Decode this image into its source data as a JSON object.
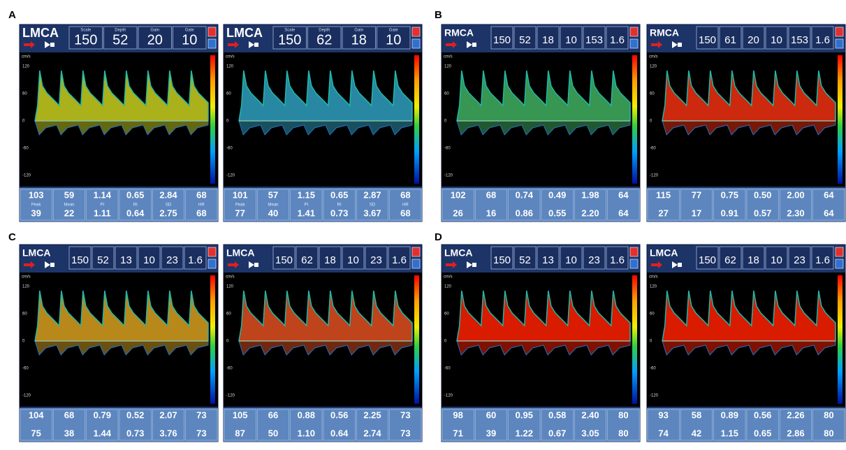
{
  "axis": {
    "unit": "cm/s",
    "ticks": [
      "120",
      "60",
      "0",
      "-60",
      "-120"
    ]
  },
  "panels": [
    {
      "label": "A",
      "screens": [
        {
          "vessel": "LMCA",
          "color": "#c8d020",
          "setting_labels": [
            "Scale",
            "Depth",
            "Gain",
            "Gate"
          ],
          "settings": [
            "150",
            "52",
            "20",
            "10"
          ],
          "row_labels": [
            "Peak",
            "Mean",
            "PI",
            "RI",
            "SD",
            "HR"
          ],
          "row1": [
            "103",
            "59",
            "1.14",
            "0.65",
            "2.84",
            "68"
          ],
          "row2": [
            "39",
            "22",
            "1.11",
            "0.64",
            "2.75",
            "68"
          ]
        },
        {
          "vessel": "LMCA",
          "color": "#2fa0c0",
          "setting_labels": [
            "Scale",
            "Depth",
            "Gain",
            "Gate"
          ],
          "settings": [
            "150",
            "62",
            "18",
            "10"
          ],
          "row_labels": [
            "Peak",
            "Mean",
            "PI",
            "RI",
            "SD",
            "HR"
          ],
          "row1": [
            "101",
            "57",
            "1.15",
            "0.65",
            "2.87",
            "68"
          ],
          "row2": [
            "77",
            "40",
            "1.41",
            "0.73",
            "3.67",
            "68"
          ]
        }
      ]
    },
    {
      "label": "B",
      "screens": [
        {
          "vessel": "RMCA",
          "color": "#40b060",
          "settings": [
            "150",
            "52",
            "18",
            "10",
            "153",
            "1.6"
          ],
          "row1": [
            "102",
            "68",
            "0.74",
            "0.49",
            "1.98",
            "64"
          ],
          "row2": [
            "26",
            "16",
            "0.86",
            "0.55",
            "2.20",
            "64"
          ]
        },
        {
          "vessel": "RMCA",
          "color": "#f03010",
          "settings": [
            "150",
            "61",
            "20",
            "10",
            "153",
            "1.6"
          ],
          "row1": [
            "115",
            "77",
            "0.75",
            "0.50",
            "2.00",
            "64"
          ],
          "row2": [
            "27",
            "17",
            "0.91",
            "0.57",
            "2.30",
            "64"
          ]
        }
      ]
    },
    {
      "label": "C",
      "screens": [
        {
          "vessel": "LMCA",
          "color": "#d8a020",
          "settings": [
            "150",
            "52",
            "13",
            "10",
            "23",
            "1.6"
          ],
          "row1": [
            "104",
            "68",
            "0.79",
            "0.52",
            "2.07",
            "73"
          ],
          "row2": [
            "75",
            "38",
            "1.44",
            "0.73",
            "3.76",
            "73"
          ]
        },
        {
          "vessel": "LMCA",
          "color": "#e05020",
          "settings": [
            "150",
            "62",
            "18",
            "10",
            "23",
            "1.6"
          ],
          "row1": [
            "105",
            "66",
            "0.88",
            "0.56",
            "2.25",
            "73"
          ],
          "row2": [
            "87",
            "50",
            "1.10",
            "0.64",
            "2.74",
            "73"
          ]
        }
      ]
    },
    {
      "label": "D",
      "screens": [
        {
          "vessel": "LMCA",
          "color": "#ff2000",
          "settings": [
            "150",
            "52",
            "13",
            "10",
            "23",
            "1.6"
          ],
          "row1": [
            "98",
            "60",
            "0.95",
            "0.58",
            "2.40",
            "80"
          ],
          "row2": [
            "71",
            "39",
            "1.22",
            "0.67",
            "3.05",
            "80"
          ]
        },
        {
          "vessel": "LMCA",
          "color": "#ff2000",
          "settings": [
            "150",
            "62",
            "18",
            "10",
            "23",
            "1.6"
          ],
          "row1": [
            "93",
            "58",
            "0.89",
            "0.56",
            "2.26",
            "80"
          ],
          "row2": [
            "74",
            "42",
            "1.15",
            "0.65",
            "2.86",
            "80"
          ]
        }
      ]
    }
  ]
}
